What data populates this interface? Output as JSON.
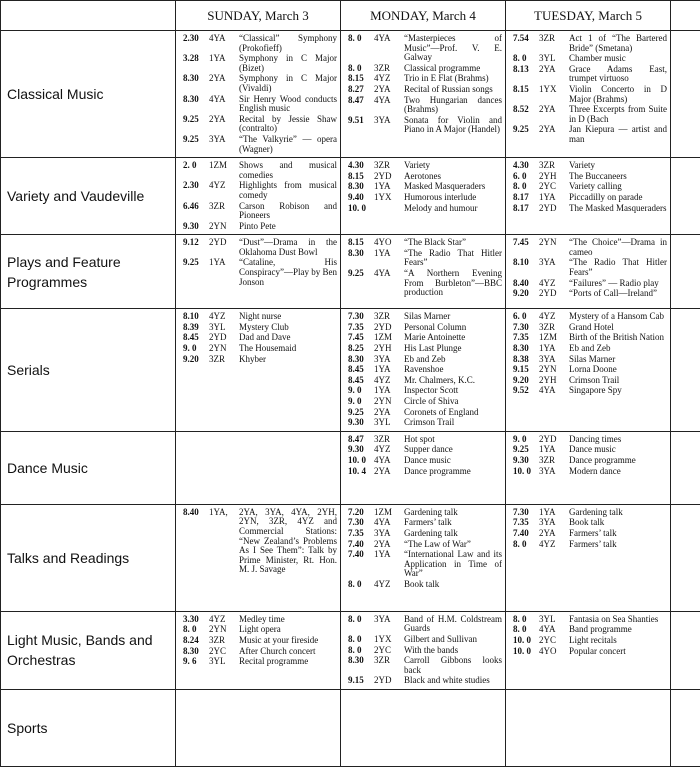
{
  "header": {
    "days": [
      "SUNDAY, March 3",
      "MONDAY, March 4",
      "TUESDAY, March 5"
    ]
  },
  "rows": [
    {
      "category": "Classical Music",
      "days": [
        [
          {
            "time": "2.30",
            "station": "4YA",
            "text": "“Classical” Symphony (Prokofieff)"
          },
          {
            "time": "3.28",
            "station": "1YA",
            "text": "Symphony in C Major (Bizet)"
          },
          {
            "time": "8.30",
            "station": "2YA",
            "text": "Symphony in C Major (Vivaldi)"
          },
          {
            "time": "8.30",
            "station": "4YA",
            "text": "Sir Henry Wood conducts English music"
          },
          {
            "time": "9.25",
            "station": "2YA",
            "text": "Recital by Jessie Shaw (contralto)"
          },
          {
            "time": "9.25",
            "station": "3YA",
            "text": "“The Valkyrie” — opera (Wagner)"
          }
        ],
        [
          {
            "time": "8. 0",
            "station": "4YA",
            "text": "“Masterpieces of Music”—Prof. V. E. Galway"
          },
          {
            "time": "8. 0",
            "station": "3ZR",
            "text": "Classical programme"
          },
          {
            "time": "8.15",
            "station": "4YZ",
            "text": "Trio in E Flat (Brahms)"
          },
          {
            "time": "8.27",
            "station": "2YA",
            "text": "Recital of Russian songs"
          },
          {
            "time": "8.47",
            "station": "4YA",
            "text": "Two Hungarian dances (Brahms)"
          },
          {
            "time": "9.51",
            "station": "3YA",
            "text": "Sonata for Violin and Piano in A Major (Handel)"
          }
        ],
        [
          {
            "time": "7.54",
            "station": "3ZR",
            "text": "Act 1 of “The Bartered Bride” (Smetana)"
          },
          {
            "time": "8. 0",
            "station": "3YL",
            "text": "Chamber music"
          },
          {
            "time": "8.13",
            "station": "2YA",
            "text": "Grace Adams East, trumpet virtuoso"
          },
          {
            "time": "8.15",
            "station": "1YX",
            "text": "Violin Concerto in D Major (Brahms)"
          },
          {
            "time": "8.52",
            "station": "2YA",
            "text": "Three Excerpts from Suite in D (Bach"
          },
          {
            "time": "9.25",
            "station": "2YA",
            "text": "Jan Kiepura — artist and man"
          }
        ]
      ]
    },
    {
      "category": "Variety and Vaudeville",
      "days": [
        [
          {
            "time": "2. 0",
            "station": "1ZM",
            "text": "Shows and musical comedies"
          },
          {
            "time": "2.30",
            "station": "4YZ",
            "text": "Highlights from musical comedy"
          },
          {
            "time": "6.46",
            "station": "3ZR",
            "text": "Carson Robison and Pioneers"
          },
          {
            "time": "9.30",
            "station": "2YN",
            "text": "Pinto Pete"
          }
        ],
        [
          {
            "time": "4.30",
            "station": "3ZR",
            "text": "Variety"
          },
          {
            "time": "8.15",
            "station": "2YD",
            "text": "Aerotones"
          },
          {
            "time": "8.30",
            "station": "1YA",
            "text": "Masked Masqueraders"
          },
          {
            "time": "9.40",
            "station": "1YX",
            "text": "Humorous interlude"
          },
          {
            "time": "10. 0",
            "text": "Melody and humour"
          }
        ],
        [
          {
            "time": "4.30",
            "station": "3ZR",
            "text": "Variety"
          },
          {
            "time": "6. 0",
            "station": "2YH",
            "text": "The Buccaneers"
          },
          {
            "time": "8. 0",
            "station": "2YC",
            "text": "Variety calling"
          },
          {
            "time": "8.17",
            "station": "1YA",
            "text": "Piccadilly on parade"
          },
          {
            "time": "8.17",
            "station": "2YD",
            "text": "The Masked Masqueraders"
          }
        ]
      ]
    },
    {
      "category": "Plays and Feature Programmes",
      "days": [
        [
          {
            "time": "9.12",
            "station": "2YD",
            "text": "“Dust”—Drama in the Oklahoma Dust Bowl"
          },
          {
            "time": "9.25",
            "station": "1YA",
            "text": "“Cataline, His Conspiracy”—Play by Ben Jonson"
          }
        ],
        [
          {
            "time": "8.15",
            "station": "4YO",
            "text": "“The Black Star”"
          },
          {
            "time": "8.30",
            "station": "1YA",
            "text": "“The Radio That Hitler Fears”"
          },
          {
            "time": "9.25",
            "station": "4YA",
            "text": "“A Northern Evening From Burbleton”—BBC production"
          }
        ],
        [
          {
            "time": "7.45",
            "station": "2YN",
            "text": "“The Choice”—Drama in cameo"
          },
          {
            "time": "8.10",
            "station": "3YA",
            "text": "“The Radio That Hitler Fears”"
          },
          {
            "time": "8.40",
            "station": "4YZ",
            "text": "“Failures” — Radio play"
          },
          {
            "time": "9.20",
            "station": "2YD",
            "text": "“Ports of Call—Ireland”"
          }
        ]
      ]
    },
    {
      "category": "Serials",
      "days": [
        [
          {
            "time": "8.10",
            "station": "4YZ",
            "text": "Night nurse"
          },
          {
            "time": "8.39",
            "station": "3YL",
            "text": "Mystery Club"
          },
          {
            "time": "8.45",
            "station": "2YD",
            "text": "Dad and Dave"
          },
          {
            "time": "9. 0",
            "station": "2YN",
            "text": "The Housemaid"
          },
          {
            "time": "9.20",
            "station": "3ZR",
            "text": "Khyber"
          }
        ],
        [
          {
            "time": "7.30",
            "station": "3ZR",
            "text": "Silas Marner"
          },
          {
            "time": "7.35",
            "station": "2YD",
            "text": "Personal Column"
          },
          {
            "time": "7.45",
            "station": "1ZM",
            "text": "Marie Antoinette"
          },
          {
            "time": "8.25",
            "station": "2YH",
            "text": "His Last Plunge"
          },
          {
            "time": "8.30",
            "station": "3YA",
            "text": "Eb and Zeb"
          },
          {
            "time": "8.45",
            "station": "1YA",
            "text": "Ravenshoe"
          },
          {
            "time": "8.45",
            "station": "4YZ",
            "text": "Mr. Chalmers, K.C."
          },
          {
            "time": "9. 0",
            "station": "1YA",
            "text": "Inspector Scott"
          },
          {
            "time": "9. 0",
            "station": "2YN",
            "text": "Circle of Shiva"
          },
          {
            "time": "9.25",
            "station": "2YA",
            "text": "Coronets of England"
          },
          {
            "time": "9.30",
            "station": "3YL",
            "text": "Crimson Trail"
          }
        ],
        [
          {
            "time": "6. 0",
            "station": "4YZ",
            "text": "Mystery of a Hansom Cab"
          },
          {
            "time": "7.30",
            "station": "3ZR",
            "text": "Grand Hotel"
          },
          {
            "time": "7.35",
            "station": "1ZM",
            "text": "Birth of the British Nation"
          },
          {
            "time": "8.30",
            "station": "1YA",
            "text": "Eb and Zeb"
          },
          {
            "time": "8.38",
            "station": "3YA",
            "text": "Silas Marner"
          },
          {
            "time": "9.15",
            "station": "2YN",
            "text": "Lorna Doone"
          },
          {
            "time": "9.20",
            "station": "2YH",
            "text": "Crimson Trail"
          },
          {
            "time": "9.52",
            "station": "4YA",
            "text": "Singapore Spy"
          }
        ]
      ]
    },
    {
      "category": "Dance Music",
      "days": [
        [],
        [
          {
            "time": "8.47",
            "station": "3ZR",
            "text": "Hot spot"
          },
          {
            "time": "9.30",
            "station": "4YZ",
            "text": "Supper dance"
          },
          {
            "time": "10. 0",
            "station": "4YA",
            "text": "Dance music"
          },
          {
            "time": "10. 4",
            "station": "2YA",
            "text": "Dance programme"
          }
        ],
        [
          {
            "time": "9. 0",
            "station": "2YD",
            "text": "Dancing times"
          },
          {
            "time": "9.25",
            "station": "1YA",
            "text": "Dance music"
          },
          {
            "time": "9.30",
            "station": "3ZR",
            "text": "Dance programme"
          },
          {
            "time": "10. 0",
            "station": "3YA",
            "text": "Modern dance"
          }
        ]
      ]
    },
    {
      "category": "Talks and Readings",
      "days": [
        [
          {
            "time": "8.40",
            "station": "1YA,",
            "text": "2YA, 3YA, 4YA, 2YH, 2YN, 3ZR, 4YZ and Commercial Stations: “New Zealand’s Problems As I See Them”: Talk by Prime Minister, Rt. Hon. M. J. Savage"
          }
        ],
        [
          {
            "time": "7.20",
            "station": "1ZM",
            "text": "Gardening talk"
          },
          {
            "time": "7.30",
            "station": "4YA",
            "text": "Farmers’ talk"
          },
          {
            "time": "7.35",
            "station": "3YA",
            "text": "Gardening talk"
          },
          {
            "time": "7.40",
            "station": "2YA",
            "text": "“The Law of War”"
          },
          {
            "time": "7.40",
            "station": "1YA",
            "text": "“International Law and its Application in Time of War”"
          },
          {
            "time": "8. 0",
            "station": "4YZ",
            "text": "Book talk"
          }
        ],
        [
          {
            "time": "7.30",
            "station": "1YA",
            "text": "Gardening talk"
          },
          {
            "time": "7.35",
            "station": "3YA",
            "text": "Book talk"
          },
          {
            "time": "7.40",
            "station": "2YA",
            "text": "Farmers’ talk"
          },
          {
            "time": "8. 0",
            "station": "4YZ",
            "text": "Farmers’ talk"
          }
        ]
      ]
    },
    {
      "category": "Light Music, Bands and Orchestras",
      "days": [
        [
          {
            "time": "3.30",
            "station": "4YZ",
            "text": "Medley time"
          },
          {
            "time": "8. 0",
            "station": "2YN",
            "text": "Light opera"
          },
          {
            "time": "8.24",
            "station": "3ZR",
            "text": "Music at your fireside"
          },
          {
            "time": "8.30",
            "station": "2YC",
            "text": "After Church concert"
          },
          {
            "time": "9. 6",
            "station": "3YL",
            "text": "Recital programme"
          }
        ],
        [
          {
            "time": "8. 0",
            "station": "3YA",
            "text": "Band of H.M. Coldstream Guards"
          },
          {
            "time": "8. 0",
            "station": "1YX",
            "text": "Gilbert and Sullivan"
          },
          {
            "time": "8. 0",
            "station": "2YC",
            "text": "With the bands"
          },
          {
            "time": "8.30",
            "station": "3ZR",
            "text": "Carroll Gibbons looks back"
          },
          {
            "time": "9.15",
            "station": "2YD",
            "text": "Black and white studies"
          }
        ],
        [
          {
            "time": "8. 0",
            "station": "3YL",
            "text": "Fantasia on Sea Shanties"
          },
          {
            "time": "8. 0",
            "station": "4YA",
            "text": "Band programme"
          },
          {
            "time": "10. 0",
            "station": "2YC",
            "text": "Light recitals"
          },
          {
            "time": "10. 0",
            "station": "4YO",
            "text": "Popular concert"
          }
        ]
      ]
    },
    {
      "category": "Sports",
      "days": [
        [],
        [],
        []
      ]
    }
  ]
}
